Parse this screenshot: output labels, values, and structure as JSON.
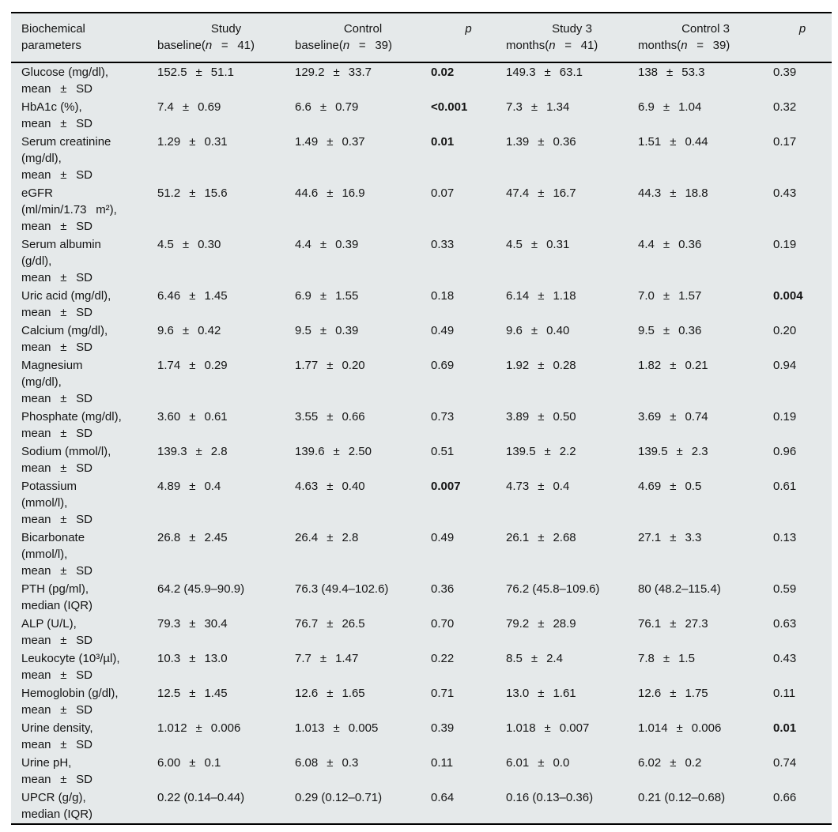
{
  "colors": {
    "panel_bg": "#e5e9ea",
    "rule": "#000000",
    "text": "#151515"
  },
  "table": {
    "header": {
      "param": {
        "line1": "Biochemical",
        "line2": "parameters"
      },
      "cols": [
        {
          "line1": "Study",
          "line2_pre": "baseline(",
          "n": "n",
          "line2_post": "  =  41)"
        },
        {
          "line1": "Control",
          "line2_pre": "baseline(",
          "n": "n",
          "line2_post": "  =  39)"
        },
        {
          "label": "p"
        },
        {
          "line1": "Study 3",
          "line2_pre": "months(",
          "n": "n",
          "line2_post": "  =  41)"
        },
        {
          "line1": "Control 3",
          "line2_pre": "months(",
          "n": "n",
          "line2_post": "  =  39)"
        },
        {
          "label": "p"
        }
      ]
    },
    "plus_minus": "±",
    "rows": [
      {
        "label_lines": [
          "Glucose (mg/dl),",
          "mean  ±  SD"
        ],
        "cells": [
          {
            "mean": "152.5",
            "sd": "51.1"
          },
          {
            "mean": "129.2",
            "sd": "33.7"
          },
          {
            "p": "0.02",
            "bold": true
          },
          {
            "mean": "149.3",
            "sd": "63.1"
          },
          {
            "mean": "138",
            "sd": "53.3"
          },
          {
            "p": "0.39",
            "bold": false
          }
        ]
      },
      {
        "label_lines": [
          "HbA1c (%),",
          "mean  ±  SD"
        ],
        "cells": [
          {
            "mean": "7.4",
            "sd": "0.69"
          },
          {
            "mean": "6.6",
            "sd": "0.79"
          },
          {
            "p": "<0.001",
            "bold": true
          },
          {
            "mean": "7.3",
            "sd": "1.34"
          },
          {
            "mean": "6.9",
            "sd": "1.04"
          },
          {
            "p": "0.32",
            "bold": false
          }
        ]
      },
      {
        "label_lines": [
          "Serum creatinine",
          "(mg/dl),",
          "mean  ±  SD"
        ],
        "cells": [
          {
            "mean": "1.29",
            "sd": "0.31"
          },
          {
            "mean": "1.49",
            "sd": "0.37"
          },
          {
            "p": "0.01",
            "bold": true
          },
          {
            "mean": "1.39",
            "sd": "0.36"
          },
          {
            "mean": "1.51",
            "sd": "0.44"
          },
          {
            "p": "0.17",
            "bold": false
          }
        ]
      },
      {
        "label_lines": [
          "eGFR",
          "(ml/min/1.73  m²),",
          "mean  ±  SD"
        ],
        "cells": [
          {
            "mean": "51.2",
            "sd": "15.6"
          },
          {
            "mean": "44.6",
            "sd": "16.9"
          },
          {
            "p": "0.07",
            "bold": false
          },
          {
            "mean": "47.4",
            "sd": "16.7"
          },
          {
            "mean": "44.3",
            "sd": "18.8"
          },
          {
            "p": "0.43",
            "bold": false
          }
        ]
      },
      {
        "label_lines": [
          "Serum albumin",
          "(g/dl),",
          "mean  ±  SD"
        ],
        "cells": [
          {
            "mean": "4.5",
            "sd": "0.30"
          },
          {
            "mean": "4.4",
            "sd": "0.39"
          },
          {
            "p": "0.33",
            "bold": false
          },
          {
            "mean": "4.5",
            "sd": "0.31"
          },
          {
            "mean": "4.4",
            "sd": "0.36"
          },
          {
            "p": "0.19",
            "bold": false
          }
        ]
      },
      {
        "label_lines": [
          "Uric acid (mg/dl),",
          "mean  ±  SD"
        ],
        "cells": [
          {
            "mean": "6.46",
            "sd": "1.45"
          },
          {
            "mean": "6.9",
            "sd": "1.55"
          },
          {
            "p": "0.18",
            "bold": false
          },
          {
            "mean": "6.14",
            "sd": "1.18"
          },
          {
            "mean": "7.0",
            "sd": "1.57"
          },
          {
            "p": "0.004",
            "bold": true
          }
        ]
      },
      {
        "label_lines": [
          "Calcium (mg/dl),",
          "mean  ±  SD"
        ],
        "cells": [
          {
            "mean": "9.6",
            "sd": "0.42"
          },
          {
            "mean": "9.5",
            "sd": "0.39"
          },
          {
            "p": "0.49",
            "bold": false
          },
          {
            "mean": "9.6",
            "sd": "0.40"
          },
          {
            "mean": "9.5",
            "sd": "0.36"
          },
          {
            "p": "0.20",
            "bold": false
          }
        ]
      },
      {
        "label_lines": [
          "Magnesium",
          "(mg/dl),",
          "mean  ±  SD"
        ],
        "cells": [
          {
            "mean": "1.74",
            "sd": "0.29"
          },
          {
            "mean": "1.77",
            "sd": "0.20"
          },
          {
            "p": "0.69",
            "bold": false
          },
          {
            "mean": "1.92",
            "sd": "0.28"
          },
          {
            "mean": "1.82",
            "sd": "0.21"
          },
          {
            "p": "0.94",
            "bold": false
          }
        ]
      },
      {
        "label_lines": [
          "Phosphate (mg/dl),",
          "mean  ±  SD"
        ],
        "cells": [
          {
            "mean": "3.60",
            "sd": "0.61"
          },
          {
            "mean": "3.55",
            "sd": "0.66"
          },
          {
            "p": "0.73",
            "bold": false
          },
          {
            "mean": "3.89",
            "sd": "0.50"
          },
          {
            "mean": "3.69",
            "sd": "0.74"
          },
          {
            "p": "0.19",
            "bold": false
          }
        ]
      },
      {
        "label_lines": [
          "Sodium (mmol/l),",
          "mean  ±  SD"
        ],
        "cells": [
          {
            "mean": "139.3",
            "sd": "2.8"
          },
          {
            "mean": "139.6",
            "sd": "2.50"
          },
          {
            "p": "0.51",
            "bold": false
          },
          {
            "mean": "139.5",
            "sd": "2.2"
          },
          {
            "mean": "139.5",
            "sd": "2.3"
          },
          {
            "p": "0.96",
            "bold": false
          }
        ]
      },
      {
        "label_lines": [
          "Potassium",
          "(mmol/l),",
          "mean  ±  SD"
        ],
        "cells": [
          {
            "mean": "4.89",
            "sd": "0.4"
          },
          {
            "mean": "4.63",
            "sd": "0.40"
          },
          {
            "p": "0.007",
            "bold": true
          },
          {
            "mean": "4.73",
            "sd": "0.4"
          },
          {
            "mean": "4.69",
            "sd": "0.5"
          },
          {
            "p": "0.61",
            "bold": false
          }
        ]
      },
      {
        "label_lines": [
          "Bicarbonate",
          "(mmol/l),",
          "mean  ±  SD"
        ],
        "cells": [
          {
            "mean": "26.8",
            "sd": "2.45"
          },
          {
            "mean": "26.4",
            "sd": "2.8"
          },
          {
            "p": "0.49",
            "bold": false
          },
          {
            "mean": "26.1",
            "sd": "2.68"
          },
          {
            "mean": "27.1",
            "sd": "3.3"
          },
          {
            "p": "0.13",
            "bold": false
          }
        ]
      },
      {
        "label_lines": [
          "PTH (pg/ml),",
          "median (IQR)"
        ],
        "cells": [
          {
            "text": "64.2 (45.9–90.9)"
          },
          {
            "text": "76.3 (49.4–102.6)"
          },
          {
            "p": "0.36",
            "bold": false
          },
          {
            "text": "76.2 (45.8–109.6)"
          },
          {
            "text": "80 (48.2–115.4)"
          },
          {
            "p": "0.59",
            "bold": false
          }
        ]
      },
      {
        "label_lines": [
          "ALP (U/L),",
          "mean  ±  SD"
        ],
        "cells": [
          {
            "mean": "79.3",
            "sd": "30.4"
          },
          {
            "mean": "76.7",
            "sd": "26.5"
          },
          {
            "p": "0.70",
            "bold": false
          },
          {
            "mean": "79.2",
            "sd": "28.9"
          },
          {
            "mean": "76.1",
            "sd": "27.3"
          },
          {
            "p": "0.63",
            "bold": false
          }
        ]
      },
      {
        "label_lines": [
          "Leukocyte (10³/µl),",
          "mean  ±  SD"
        ],
        "cells": [
          {
            "mean": "10.3",
            "sd": "13.0"
          },
          {
            "mean": "7.7",
            "sd": "1.47"
          },
          {
            "p": "0.22",
            "bold": false
          },
          {
            "mean": "8.5",
            "sd": "2.4"
          },
          {
            "mean": "7.8",
            "sd": "1.5"
          },
          {
            "p": "0.43",
            "bold": false
          }
        ]
      },
      {
        "label_lines": [
          "Hemoglobin (g/dl),",
          "mean  ±  SD"
        ],
        "cells": [
          {
            "mean": "12.5",
            "sd": "1.45"
          },
          {
            "mean": "12.6",
            "sd": "1.65"
          },
          {
            "p": "0.71",
            "bold": false
          },
          {
            "mean": "13.0",
            "sd": "1.61"
          },
          {
            "mean": "12.6",
            "sd": "1.75"
          },
          {
            "p": "0.11",
            "bold": false
          }
        ]
      },
      {
        "label_lines": [
          "Urine density,",
          "mean  ±  SD"
        ],
        "cells": [
          {
            "mean": "1.012",
            "sd": "0.006"
          },
          {
            "mean": "1.013",
            "sd": "0.005"
          },
          {
            "p": "0.39",
            "bold": false
          },
          {
            "mean": "1.018",
            "sd": "0.007"
          },
          {
            "mean": "1.014",
            "sd": "0.006"
          },
          {
            "p": "0.01",
            "bold": true
          }
        ]
      },
      {
        "label_lines": [
          "Urine pH,",
          "mean  ±  SD"
        ],
        "cells": [
          {
            "mean": "6.00",
            "sd": "0.1"
          },
          {
            "mean": "6.08",
            "sd": "0.3"
          },
          {
            "p": "0.11",
            "bold": false
          },
          {
            "mean": "6.01",
            "sd": "0.0"
          },
          {
            "mean": "6.02",
            "sd": "0.2"
          },
          {
            "p": "0.74",
            "bold": false
          }
        ]
      },
      {
        "label_lines": [
          "UPCR (g/g),",
          "median (IQR)"
        ],
        "cells": [
          {
            "text": "0.22 (0.14–0.44)"
          },
          {
            "text": "0.29 (0.12–0.71)"
          },
          {
            "p": "0.64",
            "bold": false
          },
          {
            "text": "0.16 (0.13–0.36)"
          },
          {
            "text": "0.21 (0.12–0.68)"
          },
          {
            "p": "0.66",
            "bold": false
          }
        ]
      }
    ]
  }
}
